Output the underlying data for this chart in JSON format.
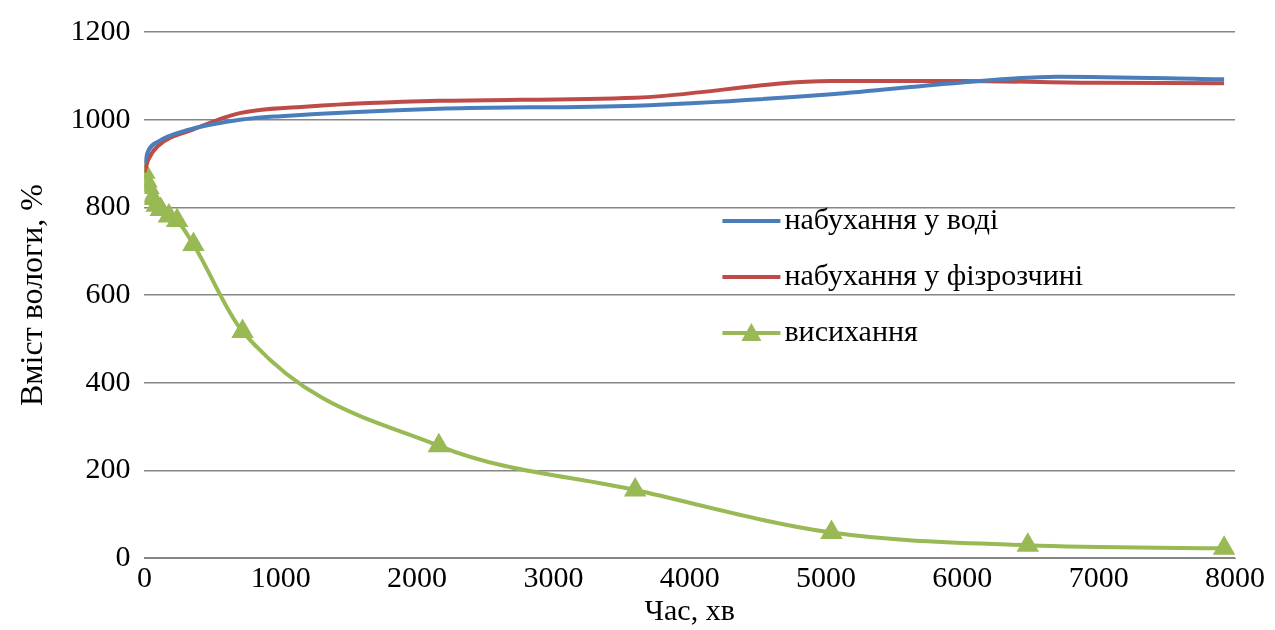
{
  "chart_data": {
    "type": "line",
    "xlabel": "Час, хв",
    "ylabel": "Вміст вологи, %",
    "xlim": [
      0,
      8000
    ],
    "xticks": [
      0,
      1000,
      2000,
      3000,
      4000,
      5000,
      6000,
      7000,
      8000
    ],
    "ylim": [
      0,
      1200
    ],
    "yticks": [
      0,
      200,
      400,
      600,
      800,
      1000,
      1200
    ],
    "grid": "y",
    "legend": "right",
    "line_style": "solid",
    "series": [
      {
        "name": "набухання у воді",
        "color": "#4a7ebb",
        "marker": "none",
        "x": [
          0,
          30,
          100,
          300,
          700,
          1000,
          2160,
          3600,
          5040,
          6000,
          6700,
          7920
        ],
        "values": [
          900,
          930,
          950,
          975,
          1000,
          1008,
          1025,
          1032,
          1058,
          1085,
          1098,
          1092
        ]
      },
      {
        "name": "набухання у фізрозчині",
        "color": "#be4b48",
        "marker": "none",
        "x": [
          0,
          30,
          100,
          360,
          700,
          1200,
          2160,
          3600,
          5040,
          6000,
          7000,
          7920
        ],
        "values": [
          880,
          910,
          940,
          978,
          1015,
          1030,
          1043,
          1050,
          1088,
          1088,
          1084,
          1083
        ]
      },
      {
        "name": "висихання",
        "color": "#98b954",
        "marker": "triangle",
        "x": [
          0,
          15,
          30,
          60,
          90,
          120,
          180,
          240,
          360,
          720,
          2160,
          3600,
          5040,
          6480,
          7920
        ],
        "values": [
          880,
          860,
          845,
          820,
          805,
          795,
          780,
          770,
          715,
          517,
          256,
          155,
          58,
          29,
          22
        ]
      }
    ]
  }
}
